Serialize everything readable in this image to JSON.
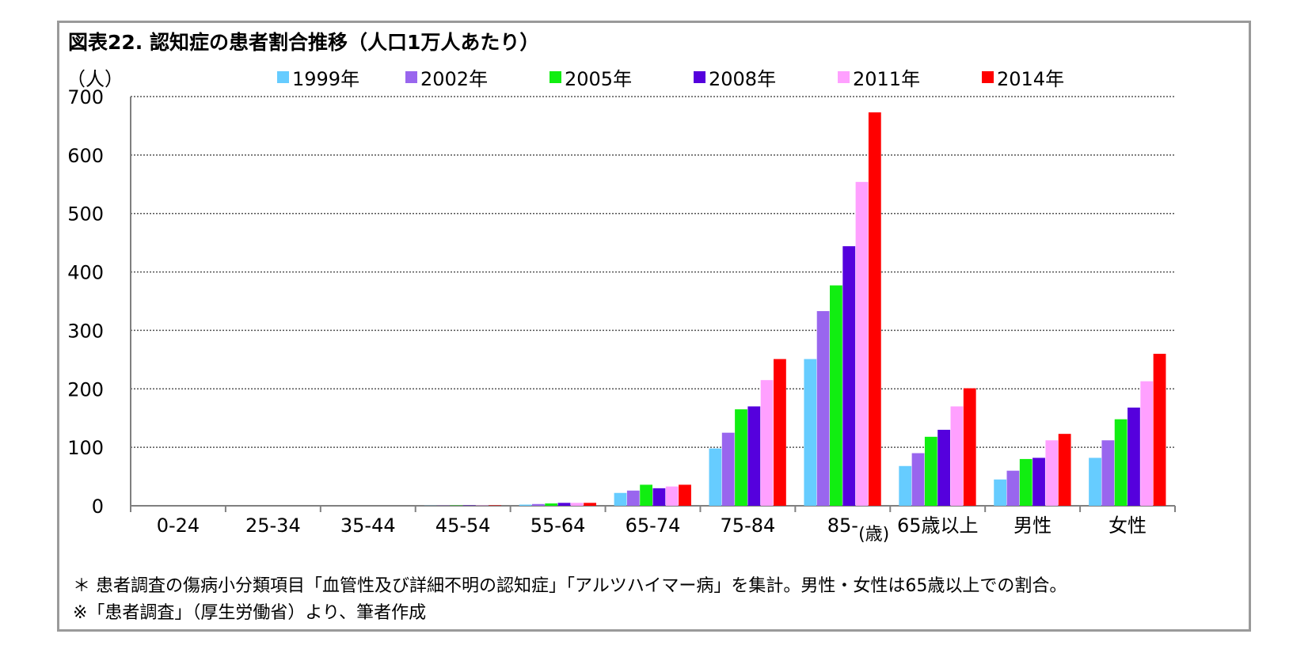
{
  "title": "図表22.  認知症の患者割合推移（人口1万人あたり）",
  "y_unit": "（人）",
  "x_unit": "(歳)",
  "colors": [
    "#66ccff",
    "#9966ee",
    "#11ee11",
    "#5500dd",
    "#ffa0ff",
    "#ff0000"
  ],
  "notes": [
    "＊  患者調査の傷病小分類項目「血管性及び詳細不明の認知症」「アルツハイマー病」を集計。男性・女性は65歳以上での割合。",
    "※「患者調査」（厚生労働省）より、筆者作成"
  ],
  "chart_data": {
    "type": "bar",
    "title": "図表22.  認知症の患者割合推移（人口1万人あたり）",
    "ylabel": "（人）",
    "ylim": [
      0,
      700
    ],
    "yticks": [
      0,
      100,
      200,
      300,
      400,
      500,
      600,
      700
    ],
    "grid": true,
    "legend_position": "top",
    "categories": [
      "0-24",
      "25-34",
      "35-44",
      "45-54",
      "55-64",
      "65-74",
      "75-84",
      "85-",
      "65歳以上",
      "男性",
      "女性"
    ],
    "series": [
      {
        "name": "1999年",
        "values": [
          0,
          0,
          0,
          0.3,
          2,
          22,
          98,
          251,
          68,
          45,
          82
        ]
      },
      {
        "name": "2002年",
        "values": [
          0,
          0,
          0,
          0.4,
          3,
          26,
          125,
          333,
          90,
          60,
          112
        ]
      },
      {
        "name": "2005年",
        "values": [
          0,
          0,
          0,
          0.5,
          4,
          36,
          165,
          377,
          118,
          80,
          148
        ]
      },
      {
        "name": "2008年",
        "values": [
          0,
          0,
          0,
          0.6,
          5,
          30,
          170,
          444,
          130,
          82,
          168
        ]
      },
      {
        "name": "2011年",
        "values": [
          0,
          0,
          0,
          0.6,
          5,
          33,
          215,
          554,
          170,
          112,
          213
        ]
      },
      {
        "name": "2014年",
        "values": [
          0,
          0,
          0,
          0.7,
          5,
          36,
          251,
          673,
          201,
          123,
          260
        ]
      }
    ]
  }
}
